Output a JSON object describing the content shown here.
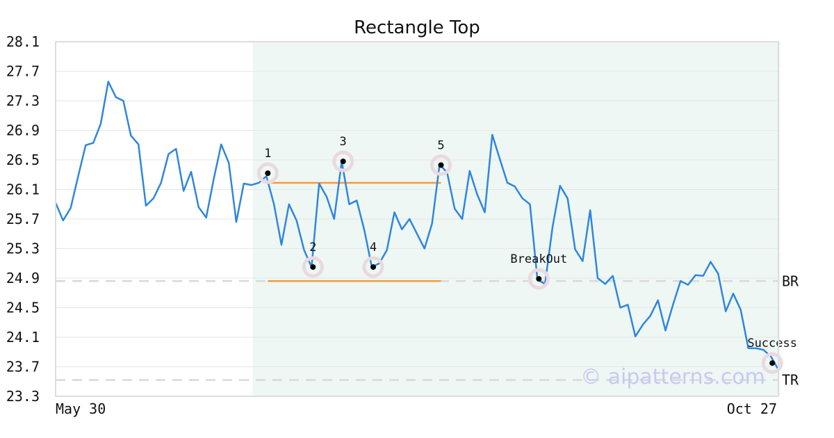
{
  "chart_data": {
    "type": "line",
    "title": "Rectangle Top",
    "xlabel": "",
    "ylabel": "",
    "x_tick_labels": [
      "May 30",
      "Oct 27"
    ],
    "ylim": [
      23.3,
      28.1
    ],
    "y_ticks": [
      "28.1",
      "27.7",
      "27.3",
      "26.9",
      "26.5",
      "26.1",
      "25.7",
      "25.3",
      "24.9",
      "24.5",
      "24.1",
      "23.7",
      "23.3"
    ],
    "grid": true,
    "n_points": 97,
    "series": [
      {
        "color": "#2e86de",
        "values": [
          25.92,
          25.68,
          25.85,
          26.28,
          26.7,
          26.73,
          26.99,
          27.56,
          27.35,
          27.3,
          26.83,
          26.71,
          25.88,
          25.98,
          26.19,
          26.58,
          26.65,
          26.08,
          26.34,
          25.86,
          25.72,
          26.24,
          26.71,
          26.46,
          25.66,
          26.18,
          26.16,
          26.19,
          26.28,
          25.9,
          25.35,
          25.9,
          25.68,
          25.28,
          25.05,
          26.18,
          26.0,
          25.7,
          26.48,
          25.9,
          25.95,
          25.55,
          25.05,
          25.1,
          25.28,
          25.79,
          25.56,
          25.7,
          25.5,
          25.3,
          25.64,
          26.44,
          26.33,
          25.84,
          25.7,
          26.35,
          26.03,
          25.79,
          26.84,
          26.51,
          26.19,
          26.14,
          25.98,
          25.9,
          24.88,
          24.82,
          25.59,
          26.15,
          25.98,
          25.29,
          25.13,
          25.82,
          24.9,
          24.82,
          24.93,
          24.5,
          24.54,
          24.11,
          24.27,
          24.39,
          24.6,
          24.19,
          24.54,
          24.86,
          24.81,
          24.94,
          24.93,
          25.12,
          24.96,
          24.45,
          24.69,
          24.47,
          23.95,
          23.95,
          23.93,
          23.84,
          23.66
        ]
      }
    ],
    "pattern_zone": {
      "start_index": 26,
      "end_index": 96,
      "color": "#eef7f3"
    },
    "level_lines": [
      {
        "label": "BR",
        "y": 24.86
      },
      {
        "label": "TR",
        "y": 23.52
      }
    ],
    "rectangle_lines": [
      {
        "y": 26.19,
        "start_index": 28,
        "end_index": 51,
        "color": "#f59a3c"
      },
      {
        "y": 24.86,
        "start_index": 28,
        "end_index": 51,
        "color": "#f59a3c"
      }
    ],
    "annotations": [
      {
        "label": "1",
        "index": 28,
        "y": 26.32
      },
      {
        "label": "2",
        "index": 34,
        "y": 25.05
      },
      {
        "label": "3",
        "index": 38,
        "y": 26.48
      },
      {
        "label": "4",
        "index": 42,
        "y": 25.05
      },
      {
        "label": "5",
        "index": 51,
        "y": 26.43
      },
      {
        "label": "BreakOut",
        "index": 64,
        "y": 24.89
      },
      {
        "label": "Success",
        "index": 95,
        "y": 23.75
      }
    ],
    "watermark": "© aipatterns.com"
  }
}
